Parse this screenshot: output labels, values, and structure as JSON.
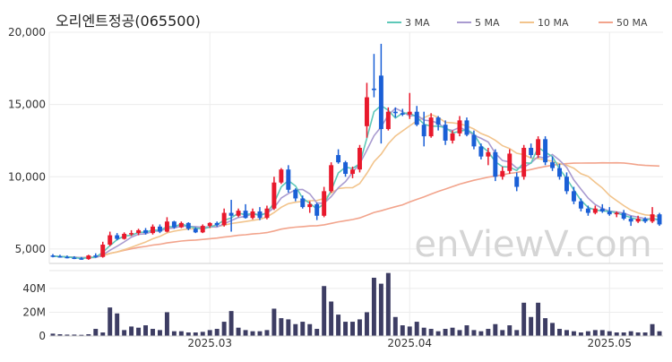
{
  "title": "오리엔트정공(065500)",
  "watermark": "enViewV.com",
  "colors": {
    "up": "#e8192c",
    "down": "#1a5fd6",
    "volume": "#3d3d63",
    "ma3": "#5ec8b8",
    "ma5": "#a99bd0",
    "ma10": "#f2c48c",
    "ma50": "#f2a48c"
  },
  "chart_data": {
    "type": "candlestick",
    "price_axis": {
      "ylim": [
        4000,
        20000
      ],
      "ticks": [
        5000,
        10000,
        15000,
        20000
      ],
      "tick_labels": [
        "5,000",
        "10,000",
        "15,000",
        "20,000"
      ]
    },
    "volume_axis": {
      "ylim": [
        0,
        55
      ],
      "unit": "M",
      "ticks": [
        0,
        20,
        40
      ],
      "tick_labels": [
        "0",
        "20M",
        "40M"
      ]
    },
    "x_ticks": [
      {
        "index": 22,
        "label": "2025.03"
      },
      {
        "index": 50,
        "label": "2025.04"
      },
      {
        "index": 78,
        "label": "2025.05"
      }
    ],
    "legend": [
      {
        "name": "3 MA",
        "color": "#5ec8b8"
      },
      {
        "name": "5 MA",
        "color": "#a99bd0"
      },
      {
        "name": "10 MA",
        "color": "#f2c48c"
      },
      {
        "name": "50 MA",
        "color": "#f2a48c"
      }
    ],
    "ohlc": [
      [
        4550,
        4650,
        4420,
        4500
      ],
      [
        4500,
        4600,
        4400,
        4450
      ],
      [
        4450,
        4550,
        4350,
        4400
      ],
      [
        4400,
        4500,
        4300,
        4350
      ],
      [
        4350,
        4450,
        4250,
        4300
      ],
      [
        4300,
        4600,
        4250,
        4550
      ],
      [
        4550,
        4700,
        4400,
        4450
      ],
      [
        4450,
        5500,
        4400,
        5300
      ],
      [
        5300,
        6200,
        5200,
        5950
      ],
      [
        5950,
        6100,
        5600,
        5700
      ],
      [
        5700,
        6150,
        5650,
        6050
      ],
      [
        6050,
        6300,
        5900,
        6100
      ],
      [
        6100,
        6400,
        5950,
        6300
      ],
      [
        6300,
        6450,
        6000,
        6100
      ],
      [
        6100,
        6700,
        6000,
        6550
      ],
      [
        6550,
        6700,
        6100,
        6200
      ],
      [
        6200,
        7200,
        6150,
        6900
      ],
      [
        6900,
        6950,
        6400,
        6500
      ],
      [
        6500,
        6900,
        6450,
        6800
      ],
      [
        6800,
        6850,
        6300,
        6400
      ],
      [
        6400,
        6500,
        6100,
        6150
      ],
      [
        6150,
        6700,
        6100,
        6600
      ],
      [
        6600,
        6850,
        6450,
        6800
      ],
      [
        6800,
        6900,
        6550,
        6650
      ],
      [
        6650,
        7800,
        6550,
        7500
      ],
      [
        7500,
        8400,
        6200,
        7300
      ],
      [
        7300,
        7800,
        7200,
        7650
      ],
      [
        7650,
        8100,
        7100,
        7150
      ],
      [
        7150,
        7800,
        7050,
        7600
      ],
      [
        7600,
        7900,
        7000,
        7150
      ],
      [
        7150,
        8000,
        7050,
        7800
      ],
      [
        7800,
        10000,
        7700,
        9600
      ],
      [
        9600,
        10600,
        9500,
        10500
      ],
      [
        10500,
        10800,
        8900,
        9100
      ],
      [
        9100,
        9200,
        8300,
        8500
      ],
      [
        8500,
        8700,
        7800,
        7900
      ],
      [
        7900,
        8300,
        7500,
        8100
      ],
      [
        8100,
        8200,
        7000,
        7300
      ],
      [
        7300,
        9300,
        7200,
        9000
      ],
      [
        9000,
        11000,
        8900,
        10800
      ],
      [
        11500,
        11900,
        10900,
        11000
      ],
      [
        11000,
        11100,
        10000,
        10200
      ],
      [
        10200,
        10700,
        9900,
        10500
      ],
      [
        10500,
        12200,
        10300,
        12000
      ],
      [
        13500,
        16500,
        12700,
        15500
      ],
      [
        16100,
        18500,
        15500,
        16000
      ],
      [
        17000,
        19200,
        12300,
        13300
      ],
      [
        13300,
        14800,
        13200,
        14500
      ],
      [
        14500,
        14800,
        14100,
        14400
      ],
      [
        14400,
        14700,
        14200,
        14300
      ],
      [
        14300,
        15800,
        14000,
        14500
      ],
      [
        14500,
        14900,
        13500,
        13600
      ],
      [
        13600,
        14500,
        12100,
        12800
      ],
      [
        12800,
        14400,
        12700,
        14100
      ],
      [
        14100,
        14200,
        13200,
        13600
      ],
      [
        13600,
        13900,
        12200,
        12500
      ],
      [
        12500,
        13200,
        12300,
        13000
      ],
      [
        13000,
        14200,
        12800,
        13900
      ],
      [
        13900,
        14100,
        12800,
        12900
      ],
      [
        12900,
        13200,
        11900,
        12100
      ],
      [
        12100,
        12300,
        11200,
        11400
      ],
      [
        11400,
        12000,
        10800,
        11700
      ],
      [
        11700,
        11900,
        9700,
        10000
      ],
      [
        10000,
        10700,
        9800,
        10400
      ],
      [
        10400,
        11900,
        10200,
        11600
      ],
      [
        10000,
        10300,
        9000,
        9300
      ],
      [
        10000,
        12200,
        9800,
        12000
      ],
      [
        12000,
        12300,
        11300,
        11500
      ],
      [
        11500,
        12800,
        11300,
        12600
      ],
      [
        12600,
        12800,
        10800,
        11000
      ],
      [
        11000,
        11400,
        10400,
        10600
      ],
      [
        10600,
        10900,
        9800,
        10000
      ],
      [
        10000,
        10300,
        8800,
        9000
      ],
      [
        9000,
        9300,
        8100,
        8300
      ],
      [
        8300,
        8500,
        7600,
        7800
      ],
      [
        7800,
        8000,
        7300,
        7500
      ],
      [
        7500,
        8000,
        7400,
        7800
      ],
      [
        7800,
        8100,
        7500,
        7600
      ],
      [
        7600,
        7900,
        7300,
        7400
      ],
      [
        7400,
        7600,
        7200,
        7500
      ],
      [
        7500,
        7700,
        7000,
        7100
      ],
      [
        7100,
        7300,
        6600,
        6900
      ],
      [
        6900,
        7300,
        6800,
        7100
      ],
      [
        7100,
        7200,
        6800,
        6900
      ],
      [
        6900,
        7900,
        6800,
        7400
      ],
      [
        7400,
        7500,
        6600,
        6700
      ]
    ],
    "volume": [
      2,
      1.5,
      1.2,
      1.2,
      1,
      1.5,
      6,
      3,
      24,
      19,
      5,
      8,
      7,
      9,
      6,
      5,
      20,
      4,
      4,
      3,
      3,
      3.5,
      5,
      6,
      12,
      21,
      7,
      5,
      4,
      4,
      5,
      23,
      15,
      14,
      10,
      12,
      10,
      6,
      42,
      29,
      18,
      12,
      12,
      14,
      20,
      49,
      44,
      53,
      16,
      9,
      8,
      12,
      7,
      6,
      4,
      6,
      7,
      5,
      9,
      5,
      4,
      6,
      10,
      5,
      9,
      5,
      28,
      16,
      28,
      15,
      11,
      6,
      5,
      4,
      3,
      4,
      5,
      5,
      4,
      3,
      3,
      4,
      3,
      3,
      10,
      4
    ]
  }
}
